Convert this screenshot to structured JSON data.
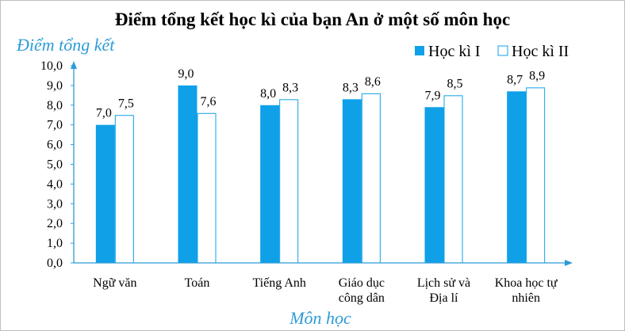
{
  "chart_data": {
    "type": "bar",
    "title": "Điểm tổng kết học kì của bạn An ở một số môn học",
    "ylabel": "Điểm tổng kết",
    "xlabel": "Môn học",
    "categories": [
      [
        "Ngữ văn"
      ],
      [
        "Toán"
      ],
      [
        "Tiếng Anh"
      ],
      [
        "Giáo dục",
        "công dân"
      ],
      [
        "Lịch sử và",
        "Địa lí"
      ],
      [
        "Khoa học tự",
        "nhiên"
      ]
    ],
    "series": [
      {
        "name": "Học kì I",
        "values": [
          7.0,
          9.0,
          8.0,
          8.3,
          7.9,
          8.7
        ],
        "labels": [
          "7,0",
          "9,0",
          "8,0",
          "8,3",
          "7,9",
          "8,7"
        ]
      },
      {
        "name": "Học kì II",
        "values": [
          7.5,
          7.6,
          8.3,
          8.6,
          8.5,
          8.9
        ],
        "labels": [
          "7,5",
          "7,6",
          "8,3",
          "8,6",
          "8,5",
          "8,9"
        ]
      }
    ],
    "yticks": [
      "0,0",
      "1,0",
      "2,0",
      "3,0",
      "4,0",
      "5,0",
      "6,0",
      "7,0",
      "8,0",
      "9,0",
      "10,0"
    ],
    "ylim": [
      0,
      10
    ],
    "grid": false,
    "legend": "top-right",
    "colors": {
      "series1": "#0FA0E8",
      "series2": "#ffffff",
      "outline": "#0FA0E8",
      "axis": "#2E9BD6",
      "label_accent": "#2E9BD6"
    }
  }
}
